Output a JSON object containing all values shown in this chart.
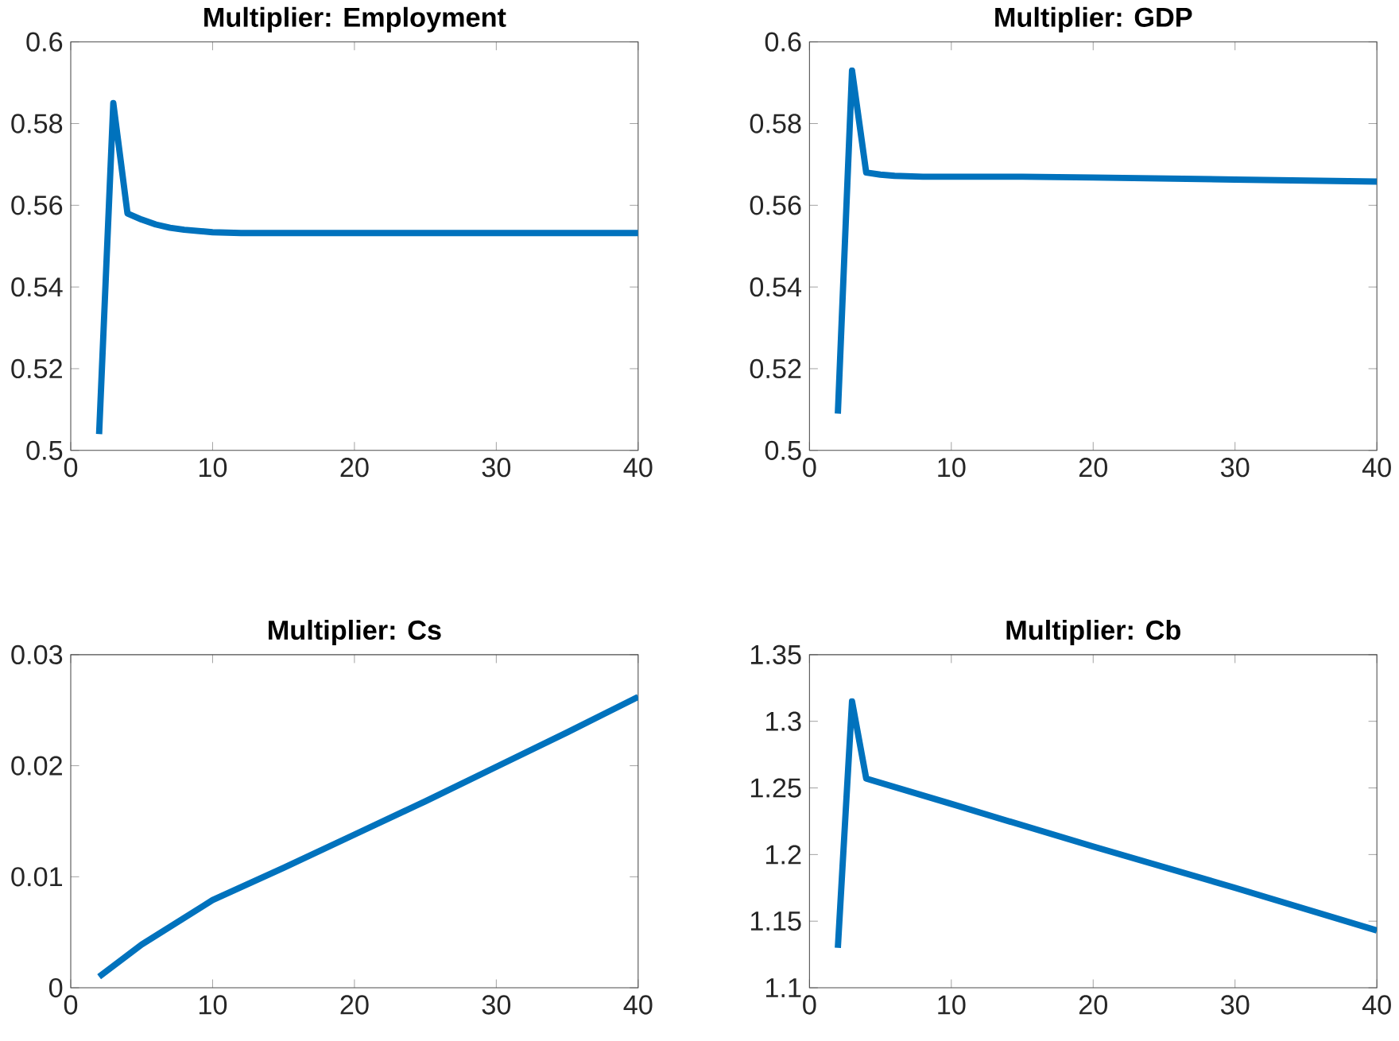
{
  "chart_data": [
    {
      "type": "line",
      "title": "Multiplier: Employment",
      "x": [
        2,
        3,
        4,
        5,
        6,
        7,
        8,
        10,
        12,
        15,
        20,
        30,
        40
      ],
      "values": [
        0.504,
        0.585,
        0.558,
        0.5565,
        0.5553,
        0.5545,
        0.554,
        0.5534,
        0.5532,
        0.5532,
        0.5532,
        0.5532,
        0.5532
      ],
      "color": "#0072bd",
      "xlim": [
        0,
        40
      ],
      "ylim": [
        0.5,
        0.6
      ],
      "xticks": [
        0,
        10,
        20,
        30,
        40
      ],
      "yticks": [
        0.5,
        0.52,
        0.54,
        0.56,
        0.58,
        0.6
      ]
    },
    {
      "type": "line",
      "title": "Multiplier: GDP",
      "x": [
        2,
        3,
        4,
        5,
        6,
        8,
        10,
        15,
        20,
        30,
        40
      ],
      "values": [
        0.509,
        0.593,
        0.568,
        0.5675,
        0.5672,
        0.567,
        0.567,
        0.567,
        0.5668,
        0.5663,
        0.5658
      ],
      "color": "#0072bd",
      "xlim": [
        0,
        40
      ],
      "ylim": [
        0.5,
        0.6
      ],
      "xticks": [
        0,
        10,
        20,
        30,
        40
      ],
      "yticks": [
        0.5,
        0.52,
        0.54,
        0.56,
        0.58,
        0.6
      ]
    },
    {
      "type": "line",
      "title": "Multiplier: Cs",
      "x": [
        2,
        5,
        10,
        15,
        20,
        25,
        30,
        35,
        40
      ],
      "values": [
        0.001,
        0.0039,
        0.0079,
        0.0108,
        0.0138,
        0.0168,
        0.0199,
        0.023,
        0.0262
      ],
      "color": "#0072bd",
      "xlim": [
        0,
        40
      ],
      "ylim": [
        0,
        0.03
      ],
      "xticks": [
        0,
        10,
        20,
        30,
        40
      ],
      "yticks": [
        0,
        0.01,
        0.02,
        0.03
      ]
    },
    {
      "type": "line",
      "title": "Multiplier: Cb",
      "x": [
        2,
        3,
        4,
        10,
        20,
        30,
        40
      ],
      "values": [
        1.13,
        1.315,
        1.257,
        1.238,
        1.206,
        1.175,
        1.143
      ],
      "color": "#0072bd",
      "xlim": [
        0,
        40
      ],
      "ylim": [
        1.1,
        1.35
      ],
      "xticks": [
        0,
        10,
        20,
        30,
        40
      ],
      "yticks": [
        1.1,
        1.15,
        1.2,
        1.25,
        1.3,
        1.35
      ]
    }
  ]
}
